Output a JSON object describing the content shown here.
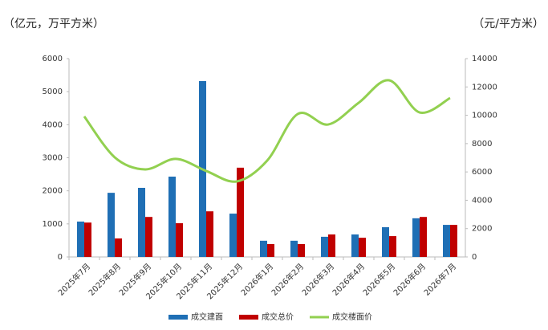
{
  "chart_data": {
    "type": "bar-line",
    "y_axis_label": "（亿元，万平方米）",
    "y2_axis_label": "（元/平方米）",
    "categories": [
      "2025年7月",
      "2025年8月",
      "2025年9月",
      "2025年10月",
      "2025年11月",
      "2025年12月",
      "2026年1月",
      "2026年2月",
      "2026年3月",
      "2026年4月",
      "2026年5月",
      "2026年6月",
      "2026年7月"
    ],
    "series": [
      {
        "name": "成交建面",
        "color": "#1f6fb5",
        "type": "bar",
        "values": [
          1070,
          1940,
          2090,
          2430,
          5320,
          1310,
          490,
          490,
          610,
          680,
          900,
          1170,
          970
        ]
      },
      {
        "name": "成交总价",
        "color": "#c00000",
        "type": "bar",
        "values": [
          1040,
          560,
          1210,
          1020,
          1380,
          2700,
          390,
          390,
          680,
          580,
          630,
          1210,
          970
        ]
      },
      {
        "name": "成交楼面价",
        "color": "#92d050",
        "type": "line",
        "axis": "y2",
        "values": [
          9920,
          7030,
          6180,
          6920,
          6070,
          5330,
          6800,
          10090,
          9350,
          10880,
          12470,
          10200,
          11220
        ]
      }
    ],
    "ylim": [
      0,
      6000
    ],
    "yticks": [
      0,
      1000,
      2000,
      3000,
      4000,
      5000,
      6000
    ],
    "y2lim": [
      0,
      14000
    ],
    "y2ticks": [
      0,
      2000,
      4000,
      6000,
      8000,
      10000,
      12000,
      14000
    ],
    "legend": "bottom"
  }
}
